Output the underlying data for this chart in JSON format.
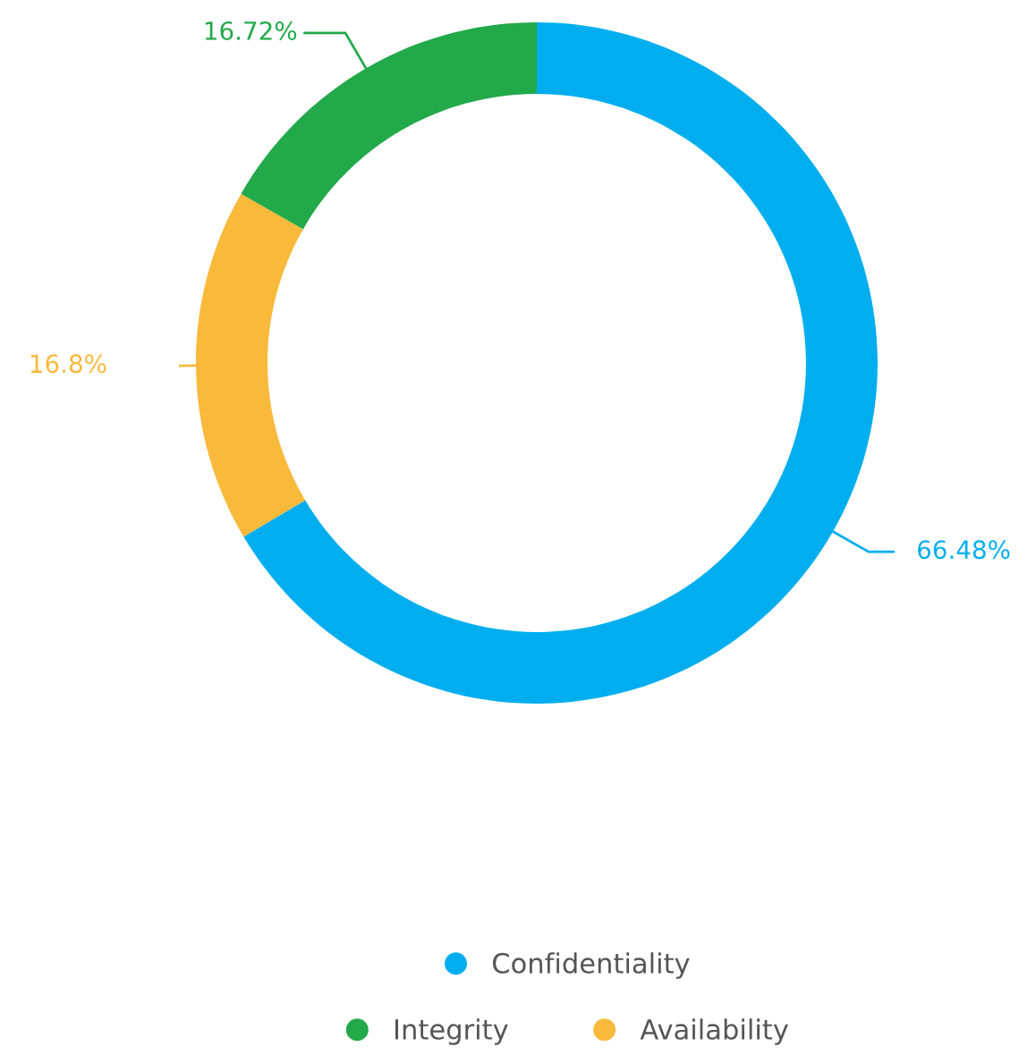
{
  "chart_data": {
    "type": "donut",
    "categories": [
      "Confidentiality",
      "Availability",
      "Integrity"
    ],
    "values": [
      66.48,
      16.8,
      16.72
    ],
    "colors": [
      "#00aeef",
      "#f9b93b",
      "#22a94a"
    ],
    "value_labels": [
      "66.48%",
      "16.8%",
      "16.72%"
    ],
    "legend": "bottom"
  }
}
